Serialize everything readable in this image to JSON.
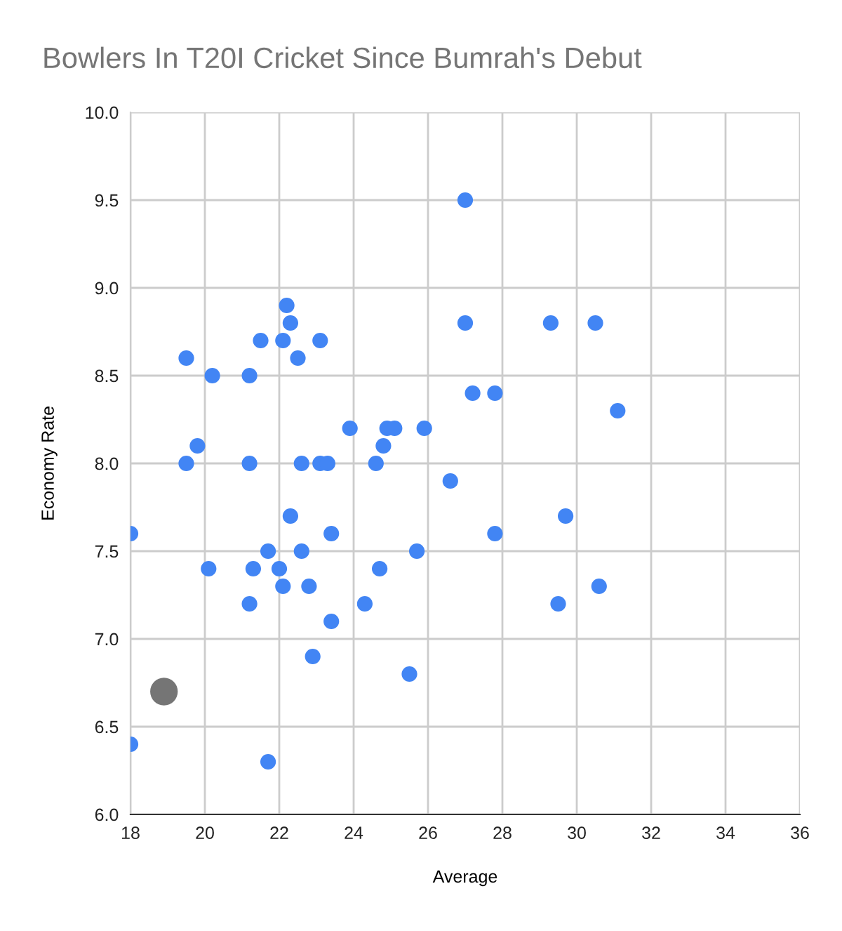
{
  "chart_data": {
    "type": "scatter",
    "title": "Bowlers In T20I Cricket Since Bumrah's Debut",
    "xlabel": "Average",
    "ylabel": "Economy Rate",
    "xlim": [
      18,
      36
    ],
    "xticks": [
      18,
      20,
      22,
      24,
      26,
      28,
      30,
      32,
      34,
      36
    ],
    "ylim": [
      6.0,
      10.0
    ],
    "yticks": [
      {
        "value": 6.0,
        "label": "6.0"
      },
      {
        "value": 6.5,
        "label": "6.5"
      },
      {
        "value": 7.0,
        "label": "7.0"
      },
      {
        "value": 7.5,
        "label": "7.5"
      },
      {
        "value": 8.0,
        "label": "8.0"
      },
      {
        "value": 8.5,
        "label": "8.5"
      },
      {
        "value": 9.0,
        "label": "9.0"
      },
      {
        "value": 9.5,
        "label": "9.5"
      },
      {
        "value": 10.0,
        "label": "10.0"
      }
    ],
    "grid": true,
    "marker": "circle",
    "series": [
      {
        "color": "#4285f4",
        "x": [
          27.0,
          22.2,
          22.3,
          27.0,
          29.3,
          30.5,
          21.5,
          22.1,
          23.1,
          19.5,
          22.5,
          20.2,
          21.2,
          27.2,
          27.8,
          31.1,
          23.9,
          24.9,
          25.1,
          25.9,
          19.8,
          24.8,
          19.5,
          21.2,
          22.6,
          23.1,
          23.3,
          24.6,
          26.6,
          22.3,
          29.7,
          18.0,
          23.4,
          27.8,
          21.7,
          22.6,
          25.7,
          20.1,
          21.3,
          22.0,
          24.7,
          22.1,
          22.8,
          30.6,
          21.2,
          24.3,
          29.5,
          23.4,
          22.9,
          25.5,
          18.0,
          21.7
        ],
        "values": [
          9.5,
          8.9,
          8.8,
          8.8,
          8.8,
          8.8,
          8.7,
          8.7,
          8.7,
          8.6,
          8.6,
          8.5,
          8.5,
          8.4,
          8.4,
          8.3,
          8.2,
          8.2,
          8.2,
          8.2,
          8.1,
          8.1,
          8.0,
          8.0,
          8.0,
          8.0,
          8.0,
          8.0,
          7.9,
          7.7,
          7.7,
          7.6,
          7.6,
          7.6,
          7.5,
          7.5,
          7.5,
          7.4,
          7.4,
          7.4,
          7.4,
          7.3,
          7.3,
          7.3,
          7.2,
          7.2,
          7.2,
          7.1,
          6.9,
          6.8,
          6.4,
          6.3
        ]
      },
      {
        "type": "bubble",
        "color": "#757575",
        "x": [
          18.9
        ],
        "values": [
          6.7
        ],
        "sizes": [
          1
        ]
      }
    ]
  }
}
